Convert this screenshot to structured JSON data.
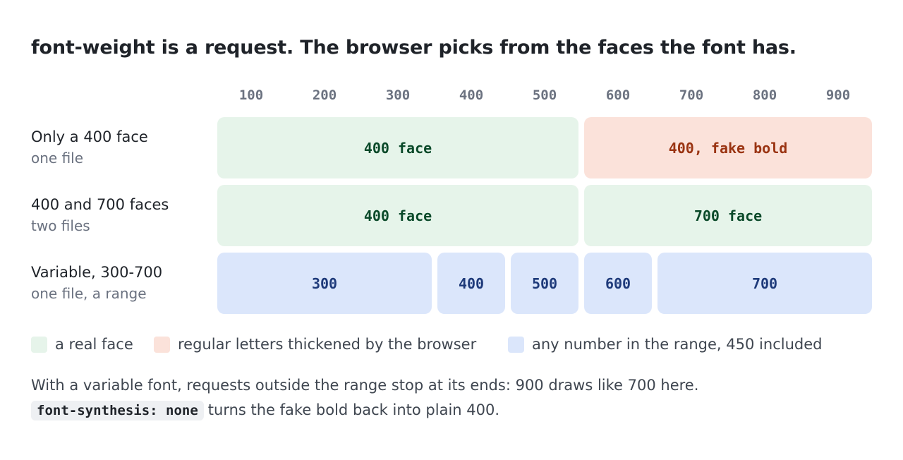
{
  "title": "font-weight is a request. The browser picks from the faces the font has.",
  "scale": [
    "100",
    "200",
    "300",
    "400",
    "500",
    "600",
    "700",
    "800",
    "900"
  ],
  "rows": [
    {
      "title": "Only a 400 face",
      "subtitle": "one file",
      "segments": [
        {
          "label": "400 face",
          "kind": "real",
          "from": 100,
          "to": 500
        },
        {
          "label": "400, fake bold",
          "kind": "fake",
          "from": 600,
          "to": 900
        }
      ]
    },
    {
      "title": "400 and 700 faces",
      "subtitle": "two files",
      "segments": [
        {
          "label": "400 face",
          "kind": "real",
          "from": 100,
          "to": 500
        },
        {
          "label": "700 face",
          "kind": "real",
          "from": 600,
          "to": 900
        }
      ]
    },
    {
      "title": "Variable, 300-700",
      "subtitle": "one file, a range",
      "segments": [
        {
          "label": "300",
          "kind": "range",
          "from": 100,
          "to": 300
        },
        {
          "label": "400",
          "kind": "range",
          "from": 400,
          "to": 400
        },
        {
          "label": "500",
          "kind": "range",
          "from": 500,
          "to": 500
        },
        {
          "label": "600",
          "kind": "range",
          "from": 600,
          "to": 600
        },
        {
          "label": "700",
          "kind": "range",
          "from": 700,
          "to": 900
        }
      ]
    }
  ],
  "legend": [
    {
      "label": "a real face",
      "kind": "real"
    },
    {
      "label": "regular letters thickened by the browser",
      "kind": "fake"
    },
    {
      "label": "any number in the range, 450 included",
      "kind": "range"
    }
  ],
  "colors": {
    "real": "#e6f4ea",
    "fake": "#fbe2da",
    "range": "#dbe6fb"
  },
  "note": {
    "line1": "With a variable font, requests outside the range stop at its ends: 900 draws like 700 here.",
    "code": "font-synthesis: none",
    "line2_rest": "turns the fake bold back into plain 400."
  }
}
